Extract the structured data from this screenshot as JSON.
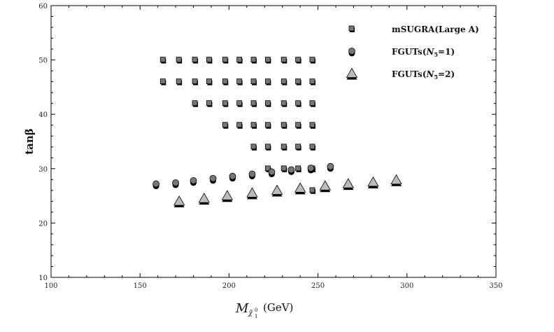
{
  "chart_data": {
    "type": "scatter",
    "title": "",
    "xlabel": "M",
    "xlabel_subscript": "χ̃",
    "xlabel_sub_sup": "0",
    "xlabel_sub_sub": "1",
    "xlabel_unit": "(GeV)",
    "ylabel": "tanβ",
    "xlim": [
      100,
      350
    ],
    "ylim": [
      10,
      60
    ],
    "xticks": [
      100,
      150,
      200,
      250,
      300,
      350
    ],
    "yticks": [
      10,
      20,
      30,
      40,
      50,
      60
    ],
    "grid": false,
    "legend_position": "top-right",
    "series": [
      {
        "name": "mSUGRA(Large A)",
        "marker": "square",
        "color": "#777777",
        "points": [
          [
            163,
            50
          ],
          [
            172,
            50
          ],
          [
            181,
            50
          ],
          [
            189,
            50
          ],
          [
            198,
            50
          ],
          [
            206,
            50
          ],
          [
            214,
            50
          ],
          [
            222,
            50
          ],
          [
            231,
            50
          ],
          [
            239,
            50
          ],
          [
            247,
            50
          ],
          [
            163,
            46
          ],
          [
            172,
            46
          ],
          [
            181,
            46
          ],
          [
            189,
            46
          ],
          [
            198,
            46
          ],
          [
            206,
            46
          ],
          [
            214,
            46
          ],
          [
            222,
            46
          ],
          [
            231,
            46
          ],
          [
            239,
            46
          ],
          [
            247,
            46
          ],
          [
            181,
            42
          ],
          [
            189,
            42
          ],
          [
            198,
            42
          ],
          [
            206,
            42
          ],
          [
            214,
            42
          ],
          [
            222,
            42
          ],
          [
            231,
            42
          ],
          [
            239,
            42
          ],
          [
            247,
            42
          ],
          [
            198,
            38
          ],
          [
            206,
            38
          ],
          [
            214,
            38
          ],
          [
            222,
            38
          ],
          [
            231,
            38
          ],
          [
            239,
            38
          ],
          [
            247,
            38
          ],
          [
            214,
            34
          ],
          [
            222,
            34
          ],
          [
            231,
            34
          ],
          [
            239,
            34
          ],
          [
            247,
            34
          ],
          [
            222,
            30
          ],
          [
            231,
            30
          ],
          [
            239,
            30
          ],
          [
            247,
            30
          ],
          [
            247,
            26
          ]
        ]
      },
      {
        "name": "FGUTs(N5=1)",
        "legend_parts": [
          "FGUTs(",
          "N",
          "5",
          "=1)"
        ],
        "marker": "circle",
        "color": "#777777",
        "points": [
          [
            159,
            27.2
          ],
          [
            170,
            27.4
          ],
          [
            180,
            27.8
          ],
          [
            191,
            28.2
          ],
          [
            202,
            28.6
          ],
          [
            213,
            29.0
          ],
          [
            224,
            29.4
          ],
          [
            235,
            29.8
          ],
          [
            246,
            30.1
          ],
          [
            257,
            30.4
          ]
        ]
      },
      {
        "name": "FGUTs(N5=2)",
        "legend_parts": [
          "FGUTs(",
          "N",
          "5",
          "=2)"
        ],
        "marker": "triangle",
        "color": "#bbbbbb",
        "points": [
          [
            172,
            24
          ],
          [
            186,
            24.5
          ],
          [
            199,
            25
          ],
          [
            213,
            25.5
          ],
          [
            227,
            26
          ],
          [
            240,
            26.4
          ],
          [
            254,
            26.8
          ],
          [
            267,
            27.2
          ],
          [
            281,
            27.5
          ],
          [
            294,
            27.9
          ]
        ]
      }
    ]
  }
}
